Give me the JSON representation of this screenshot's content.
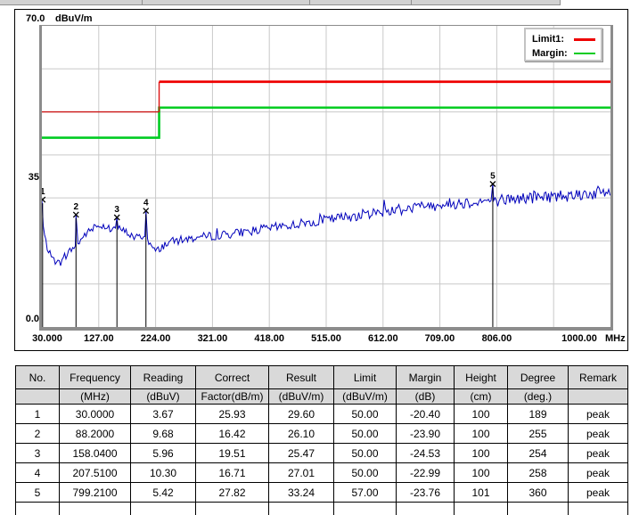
{
  "chart": {
    "y_axis": {
      "max_label": "70.0",
      "unit": "dBuV/m",
      "mid_label": "35",
      "min_label": "0.0"
    },
    "x_axis": {
      "unit": "MHz"
    },
    "legend": [
      {
        "label": "Limit1:",
        "color": "#ee0000"
      },
      {
        "label": "Margin:",
        "color": "#00cc22"
      }
    ]
  },
  "chart_data": {
    "type": "line",
    "title": "",
    "xlabel": "MHz",
    "ylabel": "dBuV/m",
    "xlim": [
      30,
      1000
    ],
    "ylim": [
      0,
      70
    ],
    "grid": {
      "x_step_mhz": 97,
      "y_step_db": 10
    },
    "legend_position": "top-right",
    "x_tick_labels": [
      "30.000",
      "127.00",
      "224.00",
      "321.00",
      "418.00",
      "515.00",
      "612.00",
      "709.00",
      "806.00",
      "1000.00"
    ],
    "y_tick_labels": [
      "70.0",
      "35",
      "0.0"
    ],
    "series": [
      {
        "name": "Limit1",
        "type": "step-line",
        "color": "#ee0000",
        "points": [
          [
            30,
            50
          ],
          [
            230,
            50
          ],
          [
            230,
            57
          ],
          [
            1000,
            57
          ]
        ]
      },
      {
        "name": "Margin",
        "type": "step-line",
        "color": "#00cc22",
        "points": [
          [
            30,
            44
          ],
          [
            230,
            44
          ],
          [
            230,
            51
          ],
          [
            1000,
            51
          ]
        ]
      },
      {
        "name": "measured-spectrum",
        "type": "noisy-line",
        "color": "#0000bb",
        "noise_db": 1.0,
        "anchors": [
          [
            30,
            29.6
          ],
          [
            31.5,
            24.5
          ],
          [
            34,
            21.5
          ],
          [
            38,
            19.0
          ],
          [
            44,
            16.8
          ],
          [
            50,
            15.6
          ],
          [
            58,
            14.8
          ],
          [
            64,
            15.2
          ],
          [
            70,
            16.2
          ],
          [
            76,
            17.4
          ],
          [
            82,
            18.3
          ],
          [
            87,
            18.8
          ],
          [
            92,
            19.4
          ],
          [
            98,
            20.6
          ],
          [
            106,
            21.8
          ],
          [
            114,
            22.5
          ],
          [
            122,
            23.3
          ],
          [
            132,
            23.7
          ],
          [
            140,
            23.2
          ],
          [
            148,
            22.7
          ],
          [
            156,
            23.0
          ],
          [
            164,
            22.7
          ],
          [
            172,
            22.2
          ],
          [
            180,
            21.5
          ],
          [
            188,
            20.8
          ],
          [
            196,
            20.9
          ],
          [
            204,
            21.2
          ],
          [
            210,
            20.6
          ],
          [
            216,
            18.9
          ],
          [
            222,
            17.7
          ],
          [
            228,
            17.9
          ],
          [
            234,
            18.6
          ],
          [
            242,
            19.4
          ],
          [
            252,
            19.9
          ],
          [
            270,
            20.3
          ],
          [
            300,
            20.9
          ],
          [
            330,
            21.3
          ],
          [
            360,
            21.8
          ],
          [
            400,
            22.6
          ],
          [
            440,
            23.4
          ],
          [
            480,
            24.2
          ],
          [
            520,
            25.0
          ],
          [
            560,
            25.8
          ],
          [
            600,
            26.6
          ],
          [
            640,
            27.3
          ],
          [
            680,
            28.0
          ],
          [
            720,
            28.6
          ],
          [
            760,
            29.0
          ],
          [
            800,
            29.4
          ],
          [
            840,
            29.8
          ],
          [
            880,
            30.2
          ],
          [
            920,
            30.6
          ],
          [
            960,
            31.0
          ],
          [
            1000,
            31.3
          ]
        ]
      }
    ],
    "markers": [
      {
        "n": "1",
        "freq_mhz": 30.0,
        "level_dbuvm": 29.6
      },
      {
        "n": "2",
        "freq_mhz": 88.2,
        "level_dbuvm": 26.1
      },
      {
        "n": "3",
        "freq_mhz": 158.04,
        "level_dbuvm": 25.47
      },
      {
        "n": "4",
        "freq_mhz": 207.51,
        "level_dbuvm": 27.01
      },
      {
        "n": "5",
        "freq_mhz": 799.21,
        "level_dbuvm": 33.24
      }
    ]
  },
  "table": {
    "headers": [
      "No.",
      "Frequency",
      "Reading",
      "Correct",
      "Result",
      "Limit",
      "Margin",
      "Height",
      "Degree",
      "Remark"
    ],
    "units": [
      "",
      "(MHz)",
      "(dBuV)",
      "Factor(dB/m)",
      "(dBuV/m)",
      "(dBuV/m)",
      "(dB)",
      "(cm)",
      "(deg.)",
      ""
    ],
    "rows": [
      [
        "1",
        "30.0000",
        "3.67",
        "25.93",
        "29.60",
        "50.00",
        "-20.40",
        "100",
        "189",
        "peak"
      ],
      [
        "2",
        "88.2000",
        "9.68",
        "16.42",
        "26.10",
        "50.00",
        "-23.90",
        "100",
        "255",
        "peak"
      ],
      [
        "3",
        "158.0400",
        "5.96",
        "19.51",
        "25.47",
        "50.00",
        "-24.53",
        "100",
        "254",
        "peak"
      ],
      [
        "4",
        "207.5100",
        "10.30",
        "16.71",
        "27.01",
        "50.00",
        "-22.99",
        "100",
        "258",
        "peak"
      ],
      [
        "5",
        "799.2100",
        "5.42",
        "27.82",
        "33.24",
        "57.00",
        "-23.76",
        "101",
        "360",
        "peak"
      ]
    ]
  }
}
